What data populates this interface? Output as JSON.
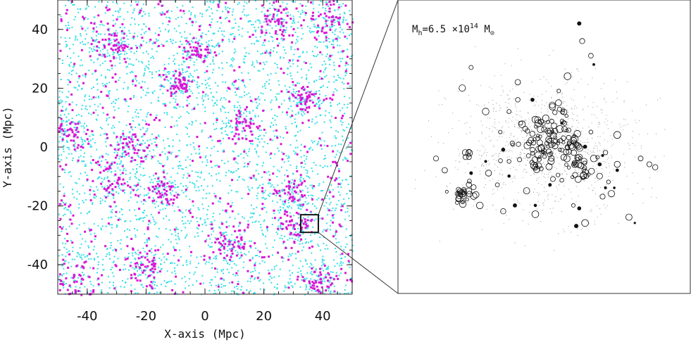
{
  "chart_data": [
    {
      "type": "scatter",
      "title": "",
      "xlabel": "X-axis (Mpc)",
      "ylabel": "Y-axis (Mpc)",
      "xlim": [
        -50,
        50
      ],
      "ylim": [
        -50,
        50
      ],
      "xticks": [
        -40,
        -20,
        0,
        20,
        40
      ],
      "yticks": [
        -40,
        -20,
        0,
        20,
        40
      ],
      "grid": false,
      "colors": {
        "field": "#33dfe6",
        "halo": "#d916d6"
      },
      "series": [],
      "overdensities": [
        {
          "x": -31,
          "y": 35,
          "s": 2.5
        },
        {
          "x": -9,
          "y": 22,
          "s": 2.5
        },
        {
          "x": 13,
          "y": 8,
          "s": 3
        },
        {
          "x": 33,
          "y": 17,
          "s": 2.5
        },
        {
          "x": -25,
          "y": 0,
          "s": 3
        },
        {
          "x": -33,
          "y": -11,
          "s": 3.5
        },
        {
          "x": -15,
          "y": -15,
          "s": 3
        },
        {
          "x": 29,
          "y": -15,
          "s": 3
        },
        {
          "x": 31,
          "y": -26,
          "s": 3
        },
        {
          "x": -45,
          "y": -46,
          "s": 4
        },
        {
          "x": -3,
          "y": 33,
          "s": 2.5
        },
        {
          "x": 8,
          "y": -34,
          "s": 3
        },
        {
          "x": 25,
          "y": 42,
          "s": 3
        },
        {
          "x": -47,
          "y": 5,
          "s": 3
        },
        {
          "x": 42,
          "y": 44,
          "s": 3
        },
        {
          "x": -20,
          "y": -40,
          "s": 3
        },
        {
          "x": 38,
          "y": -46,
          "s": 3
        }
      ],
      "zoom_box": {
        "x0": 32.5,
        "x1": 38.5,
        "y0": -29,
        "y1": -23
      }
    },
    {
      "type": "scatter",
      "annotation": {
        "prefix": "M",
        "sub": "h",
        "text": "=6.5 ×10",
        "sup": "14",
        "unit": " M",
        "unit_sub": "⊙"
      },
      "clumps": [
        {
          "x": 0.5,
          "y": 0.52,
          "s": 0.045,
          "n": 90
        },
        {
          "x": 0.22,
          "y": 0.33,
          "s": 0.022,
          "n": 28
        },
        {
          "x": 0.62,
          "y": 0.43,
          "s": 0.025,
          "n": 30
        },
        {
          "x": 0.6,
          "y": 0.51,
          "s": 0.02,
          "n": 18
        },
        {
          "x": 0.56,
          "y": 0.62,
          "s": 0.018,
          "n": 10
        },
        {
          "x": 0.24,
          "y": 0.49,
          "s": 0.01,
          "n": 5
        }
      ],
      "isolated_halos": [
        [
          0.13,
          0.46
        ],
        [
          0.16,
          0.42
        ],
        [
          0.23,
          0.48
        ],
        [
          0.28,
          0.3
        ],
        [
          0.31,
          0.41
        ],
        [
          0.34,
          0.37
        ],
        [
          0.36,
          0.28
        ],
        [
          0.38,
          0.45
        ],
        [
          0.35,
          0.55
        ],
        [
          0.38,
          0.62
        ],
        [
          0.41,
          0.72
        ],
        [
          0.44,
          0.35
        ],
        [
          0.46,
          0.49
        ],
        [
          0.41,
          0.66
        ],
        [
          0.47,
          0.27
        ],
        [
          0.48,
          0.58
        ],
        [
          0.55,
          0.69
        ],
        [
          0.58,
          0.74
        ],
        [
          0.63,
          0.86
        ],
        [
          0.66,
          0.81
        ],
        [
          0.66,
          0.55
        ],
        [
          0.67,
          0.46
        ],
        [
          0.69,
          0.4
        ],
        [
          0.71,
          0.48
        ],
        [
          0.72,
          0.38
        ],
        [
          0.73,
          0.34
        ],
        [
          0.75,
          0.54
        ],
        [
          0.79,
          0.26
        ],
        [
          0.83,
          0.46
        ],
        [
          0.86,
          0.44
        ],
        [
          0.88,
          0.43
        ],
        [
          0.22,
          0.7
        ],
        [
          0.25,
          0.77
        ],
        [
          0.3,
          0.62
        ],
        [
          0.53,
          0.39
        ],
        [
          0.57,
          0.58
        ],
        [
          0.6,
          0.3
        ],
        [
          0.64,
          0.24
        ],
        [
          0.7,
          0.33
        ],
        [
          0.75,
          0.44
        ]
      ],
      "solid_halos": [
        [
          0.62,
          0.92
        ],
        [
          0.61,
          0.23
        ],
        [
          0.62,
          0.29
        ],
        [
          0.56,
          0.58
        ],
        [
          0.71,
          0.36
        ],
        [
          0.46,
          0.66
        ],
        [
          0.3,
          0.45
        ],
        [
          0.4,
          0.3
        ],
        [
          0.38,
          0.4
        ],
        [
          0.36,
          0.49
        ],
        [
          0.52,
          0.37
        ],
        [
          0.64,
          0.5
        ],
        [
          0.7,
          0.47
        ],
        [
          0.75,
          0.42
        ],
        [
          0.81,
          0.24
        ],
        [
          0.67,
          0.78
        ],
        [
          0.74,
          0.36
        ],
        [
          0.25,
          0.41
        ],
        [
          0.69,
          0.44
        ],
        [
          0.47,
          0.3
        ]
      ]
    }
  ]
}
